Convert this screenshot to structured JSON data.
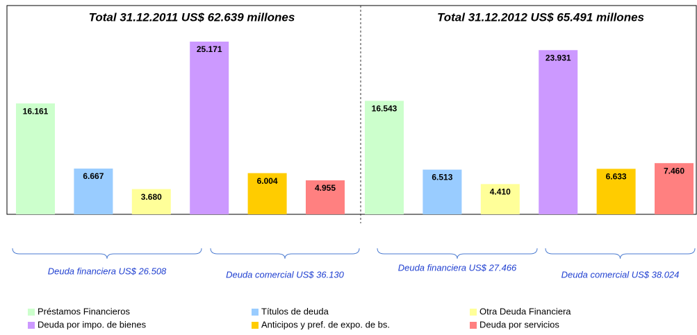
{
  "chart_data": {
    "type": "bar",
    "categories": [
      "Total 31.12.2011 US$ 62.639 millones",
      "Total 31.12.2012 US$ 65.491 millones"
    ],
    "series": [
      {
        "name": "Préstamos Financieros",
        "color": "#ccffcc",
        "values": [
          16161,
          16543
        ],
        "value_labels": [
          "16.161",
          "16.543"
        ]
      },
      {
        "name": "Títulos de deuda",
        "color": "#99ccff",
        "values": [
          6667,
          6513
        ],
        "value_labels": [
          "6.667",
          "6.513"
        ]
      },
      {
        "name": "Otra Deuda Financiera",
        "color": "#ffff99",
        "values": [
          3680,
          4410
        ],
        "value_labels": [
          "3.680",
          "4.410"
        ]
      },
      {
        "name": "Deuda por impo. de bienes",
        "color": "#cc99ff",
        "values": [
          25171,
          23931
        ],
        "value_labels": [
          "25.171",
          "23.931"
        ]
      },
      {
        "name": "Anticipos y pref. de expo. de bs.",
        "color": "#ffcc00",
        "values": [
          6004,
          6633
        ],
        "value_labels": [
          "6.004",
          "6.633"
        ]
      },
      {
        "name": "Deuda por servicios",
        "color": "#ff8080",
        "values": [
          4955,
          7460
        ],
        "value_labels": [
          "4.955",
          "7.460"
        ]
      }
    ],
    "annotations": [
      "Deuda financiera US$ 26.508",
      "Deuda comercial US$ 36.130",
      "Deuda financiera US$ 27.466",
      "Deuda comercial US$ 38.024"
    ]
  }
}
